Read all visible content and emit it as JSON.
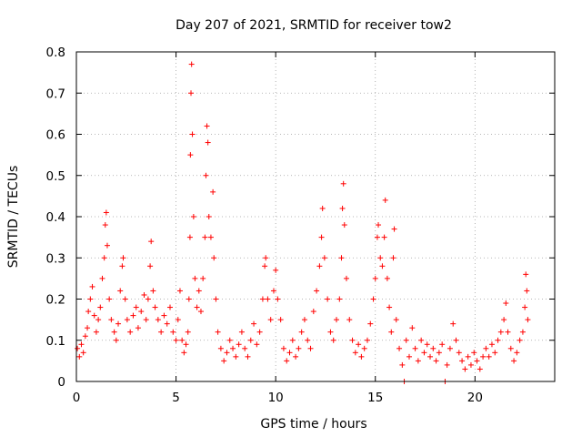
{
  "chart_data": {
    "type": "scatter",
    "title": "Day 207 of 2021, SRMTID for receiver tow2",
    "xlabel": "GPS time / hours",
    "ylabel": "SRMTID / TECUs",
    "xlim": [
      0,
      24
    ],
    "ylim": [
      0,
      0.8
    ],
    "xticks": [
      0,
      5,
      10,
      15,
      20
    ],
    "xtick_labels": [
      "0",
      "5",
      "10",
      "15",
      "20"
    ],
    "yticks": [
      0,
      0.1,
      0.2,
      0.3,
      0.4,
      0.5,
      0.6,
      0.7,
      0.8
    ],
    "ytick_labels": [
      "0",
      "0.1",
      "0.2",
      "0.3",
      "0.4",
      "0.5",
      "0.6",
      "0.7",
      "0.8"
    ],
    "grid": true,
    "series": [
      {
        "name": "SRMTID",
        "marker": "plus",
        "color": "#ff0000",
        "points": [
          [
            0.05,
            0.08
          ],
          [
            0.15,
            0.06
          ],
          [
            0.25,
            0.09
          ],
          [
            0.35,
            0.07
          ],
          [
            0.45,
            0.11
          ],
          [
            0.55,
            0.13
          ],
          [
            0.6,
            0.17
          ],
          [
            0.7,
            0.2
          ],
          [
            0.8,
            0.23
          ],
          [
            0.9,
            0.16
          ],
          [
            1.0,
            0.12
          ],
          [
            1.1,
            0.15
          ],
          [
            1.2,
            0.18
          ],
          [
            1.3,
            0.25
          ],
          [
            1.4,
            0.3
          ],
          [
            1.45,
            0.38
          ],
          [
            1.5,
            0.41
          ],
          [
            1.55,
            0.33
          ],
          [
            1.65,
            0.2
          ],
          [
            1.75,
            0.15
          ],
          [
            1.9,
            0.12
          ],
          [
            2.0,
            0.1
          ],
          [
            2.1,
            0.14
          ],
          [
            2.2,
            0.22
          ],
          [
            2.3,
            0.28
          ],
          [
            2.35,
            0.3
          ],
          [
            2.45,
            0.2
          ],
          [
            2.55,
            0.15
          ],
          [
            2.7,
            0.12
          ],
          [
            2.85,
            0.16
          ],
          [
            3.0,
            0.18
          ],
          [
            3.1,
            0.13
          ],
          [
            3.25,
            0.17
          ],
          [
            3.4,
            0.21
          ],
          [
            3.5,
            0.15
          ],
          [
            3.6,
            0.2
          ],
          [
            3.7,
            0.28
          ],
          [
            3.75,
            0.34
          ],
          [
            3.85,
            0.22
          ],
          [
            3.95,
            0.18
          ],
          [
            4.1,
            0.15
          ],
          [
            4.25,
            0.12
          ],
          [
            4.4,
            0.16
          ],
          [
            4.55,
            0.14
          ],
          [
            4.7,
            0.18
          ],
          [
            4.85,
            0.12
          ],
          [
            5.0,
            0.1
          ],
          [
            5.1,
            0.15
          ],
          [
            5.2,
            0.22
          ],
          [
            5.3,
            0.1
          ],
          [
            5.4,
            0.07
          ],
          [
            5.5,
            0.09
          ],
          [
            5.6,
            0.12
          ],
          [
            5.65,
            0.2
          ],
          [
            5.7,
            0.35
          ],
          [
            5.72,
            0.55
          ],
          [
            5.75,
            0.7
          ],
          [
            5.78,
            0.77
          ],
          [
            5.82,
            0.6
          ],
          [
            5.88,
            0.4
          ],
          [
            5.95,
            0.25
          ],
          [
            6.05,
            0.18
          ],
          [
            6.15,
            0.22
          ],
          [
            6.25,
            0.17
          ],
          [
            6.35,
            0.25
          ],
          [
            6.45,
            0.35
          ],
          [
            6.5,
            0.5
          ],
          [
            6.55,
            0.62
          ],
          [
            6.6,
            0.58
          ],
          [
            6.65,
            0.4
          ],
          [
            6.75,
            0.35
          ],
          [
            6.85,
            0.46
          ],
          [
            6.9,
            0.3
          ],
          [
            7.0,
            0.2
          ],
          [
            7.1,
            0.12
          ],
          [
            7.25,
            0.08
          ],
          [
            7.4,
            0.05
          ],
          [
            7.55,
            0.07
          ],
          [
            7.7,
            0.1
          ],
          [
            7.85,
            0.08
          ],
          [
            8.0,
            0.06
          ],
          [
            8.15,
            0.09
          ],
          [
            8.3,
            0.12
          ],
          [
            8.45,
            0.08
          ],
          [
            8.6,
            0.06
          ],
          [
            8.75,
            0.1
          ],
          [
            8.9,
            0.14
          ],
          [
            9.05,
            0.09
          ],
          [
            9.2,
            0.12
          ],
          [
            9.35,
            0.2
          ],
          [
            9.45,
            0.28
          ],
          [
            9.5,
            0.3
          ],
          [
            9.6,
            0.2
          ],
          [
            9.75,
            0.15
          ],
          [
            9.9,
            0.22
          ],
          [
            10.0,
            0.27
          ],
          [
            10.1,
            0.2
          ],
          [
            10.25,
            0.15
          ],
          [
            10.4,
            0.08
          ],
          [
            10.55,
            0.05
          ],
          [
            10.7,
            0.07
          ],
          [
            10.85,
            0.1
          ],
          [
            11.0,
            0.06
          ],
          [
            11.15,
            0.08
          ],
          [
            11.3,
            0.12
          ],
          [
            11.45,
            0.15
          ],
          [
            11.6,
            0.1
          ],
          [
            11.75,
            0.08
          ],
          [
            11.9,
            0.17
          ],
          [
            12.05,
            0.22
          ],
          [
            12.2,
            0.28
          ],
          [
            12.3,
            0.35
          ],
          [
            12.35,
            0.42
          ],
          [
            12.45,
            0.3
          ],
          [
            12.6,
            0.2
          ],
          [
            12.75,
            0.12
          ],
          [
            12.9,
            0.1
          ],
          [
            13.05,
            0.15
          ],
          [
            13.2,
            0.2
          ],
          [
            13.3,
            0.3
          ],
          [
            13.35,
            0.42
          ],
          [
            13.4,
            0.48
          ],
          [
            13.45,
            0.38
          ],
          [
            13.55,
            0.25
          ],
          [
            13.7,
            0.15
          ],
          [
            13.85,
            0.1
          ],
          [
            14.0,
            0.07
          ],
          [
            14.15,
            0.09
          ],
          [
            14.3,
            0.06
          ],
          [
            14.45,
            0.08
          ],
          [
            14.6,
            0.1
          ],
          [
            14.75,
            0.14
          ],
          [
            14.9,
            0.2
          ],
          [
            15.0,
            0.25
          ],
          [
            15.1,
            0.35
          ],
          [
            15.15,
            0.38
          ],
          [
            15.25,
            0.3
          ],
          [
            15.35,
            0.28
          ],
          [
            15.45,
            0.35
          ],
          [
            15.5,
            0.44
          ],
          [
            15.6,
            0.25
          ],
          [
            15.7,
            0.18
          ],
          [
            15.8,
            0.12
          ],
          [
            15.9,
            0.3
          ],
          [
            15.95,
            0.37
          ],
          [
            16.05,
            0.15
          ],
          [
            16.2,
            0.08
          ],
          [
            16.35,
            0.04
          ],
          [
            16.45,
            0.0
          ],
          [
            16.55,
            0.1
          ],
          [
            16.7,
            0.06
          ],
          [
            16.85,
            0.13
          ],
          [
            17.0,
            0.08
          ],
          [
            17.15,
            0.05
          ],
          [
            17.3,
            0.1
          ],
          [
            17.45,
            0.07
          ],
          [
            17.6,
            0.09
          ],
          [
            17.75,
            0.06
          ],
          [
            17.9,
            0.08
          ],
          [
            18.05,
            0.05
          ],
          [
            18.2,
            0.07
          ],
          [
            18.35,
            0.09
          ],
          [
            18.5,
            0.0
          ],
          [
            18.6,
            0.04
          ],
          [
            18.75,
            0.08
          ],
          [
            18.9,
            0.14
          ],
          [
            19.05,
            0.1
          ],
          [
            19.2,
            0.07
          ],
          [
            19.35,
            0.05
          ],
          [
            19.5,
            0.03
          ],
          [
            19.65,
            0.06
          ],
          [
            19.8,
            0.04
          ],
          [
            19.95,
            0.07
          ],
          [
            20.1,
            0.05
          ],
          [
            20.25,
            0.03
          ],
          [
            20.4,
            0.06
          ],
          [
            20.55,
            0.08
          ],
          [
            20.7,
            0.06
          ],
          [
            20.85,
            0.09
          ],
          [
            21.0,
            0.07
          ],
          [
            21.15,
            0.1
          ],
          [
            21.3,
            0.12
          ],
          [
            21.45,
            0.15
          ],
          [
            21.55,
            0.19
          ],
          [
            21.65,
            0.12
          ],
          [
            21.8,
            0.08
          ],
          [
            21.95,
            0.05
          ],
          [
            22.1,
            0.07
          ],
          [
            22.25,
            0.1
          ],
          [
            22.4,
            0.12
          ],
          [
            22.5,
            0.18
          ],
          [
            22.55,
            0.26
          ],
          [
            22.6,
            0.22
          ],
          [
            22.65,
            0.15
          ]
        ]
      }
    ]
  }
}
